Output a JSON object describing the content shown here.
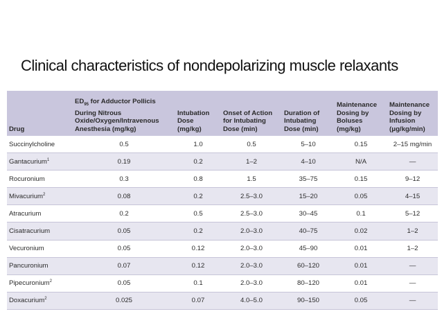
{
  "title": "Clinical characteristics of nondepolarizing muscle relaxants",
  "table": {
    "headers": {
      "drug": "Drug",
      "ed95_pre": "ED",
      "ed95_sub": "95",
      "ed95_post": " for Adductor Pollicis During Nitrous Oxide/Oxygen/Intravenous Anesthesia (mg/kg)",
      "intubation_dose": "Intubation Dose (mg/kg)",
      "onset": "Onset of Action for Intubating Dose (min)",
      "duration": "Duration of Intubating Dose (min)",
      "boluses": "Maintenance Dosing by Boluses (mg/kg)",
      "infusion": "Maintenance Dosing by Infusion (μg/kg/min)"
    },
    "rows": [
      {
        "drug": "Succinylcholine",
        "sup": "",
        "ed95": "0.5",
        "intubation": "1.0",
        "onset": "0.5",
        "duration": "5–10",
        "boluses": "0.15",
        "infusion": "2–15 mg/min"
      },
      {
        "drug": "Gantacurium",
        "sup": "1",
        "ed95": "0.19",
        "intubation": "0.2",
        "onset": "1–2",
        "duration": "4–10",
        "boluses": "N/A",
        "infusion": "—"
      },
      {
        "drug": "Rocuronium",
        "sup": "",
        "ed95": "0.3",
        "intubation": "0.8",
        "onset": "1.5",
        "duration": "35–75",
        "boluses": "0.15",
        "infusion": "9–12"
      },
      {
        "drug": "Mivacurium",
        "sup": "2",
        "ed95": "0.08",
        "intubation": "0.2",
        "onset": "2.5–3.0",
        "duration": "15–20",
        "boluses": "0.05",
        "infusion": "4–15"
      },
      {
        "drug": "Atracurium",
        "sup": "",
        "ed95": "0.2",
        "intubation": "0.5",
        "onset": "2.5–3.0",
        "duration": "30–45",
        "boluses": "0.1",
        "infusion": "5–12"
      },
      {
        "drug": "Cisatracurium",
        "sup": "",
        "ed95": "0.05",
        "intubation": "0.2",
        "onset": "2.0–3.0",
        "duration": "40–75",
        "boluses": "0.02",
        "infusion": "1–2"
      },
      {
        "drug": "Vecuronium",
        "sup": "",
        "ed95": "0.05",
        "intubation": "0.12",
        "onset": "2.0–3.0",
        "duration": "45–90",
        "boluses": "0.01",
        "infusion": "1–2"
      },
      {
        "drug": "Pancuronium",
        "sup": "",
        "ed95": "0.07",
        "intubation": "0.12",
        "onset": "2.0–3.0",
        "duration": "60–120",
        "boluses": "0.01",
        "infusion": "—"
      },
      {
        "drug": "Pipecuronium",
        "sup": "2",
        "ed95": "0.05",
        "intubation": "0.1",
        "onset": "2.0–3.0",
        "duration": "80–120",
        "boluses": "0.01",
        "infusion": "—"
      },
      {
        "drug": "Doxacurium",
        "sup": "2",
        "ed95": "0.025",
        "intubation": "0.07",
        "onset": "4.0–5.0",
        "duration": "90–150",
        "boluses": "0.05",
        "infusion": "—"
      }
    ]
  }
}
